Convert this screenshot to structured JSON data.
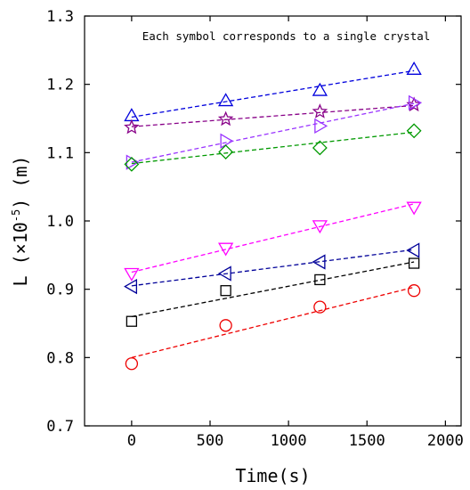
{
  "chart_data": {
    "type": "scatter",
    "annotation": "Each symbol corresponds to a single crystal",
    "xlabel": "Time(s)",
    "ylabel": "L (×10",
    "ylabel_exponent": "-5",
    "ylabel_unit": ") (m)",
    "xlim": [
      -300,
      2100
    ],
    "ylim": [
      0.7,
      1.3
    ],
    "xticks": [
      0,
      500,
      1000,
      1500,
      2000
    ],
    "xtick_labels": [
      "0",
      "500",
      "1000",
      "1500",
      "2000"
    ],
    "yticks": [
      0.7,
      0.8,
      0.9,
      1.0,
      1.1,
      1.2,
      1.3
    ],
    "ytick_labels": [
      "0.7",
      "0.8",
      "0.9",
      "1.0",
      "1.1",
      "1.2",
      "1.3"
    ],
    "grid": false,
    "legend": "none",
    "x": [
      0,
      600,
      1200,
      1800
    ],
    "series": [
      {
        "marker": "triangle-up",
        "color": "#0000dd",
        "values": [
          1.154,
          1.176,
          1.191,
          1.222
        ],
        "fit": [
          1.152,
          1.22
        ]
      },
      {
        "marker": "star",
        "color": "#880088",
        "values": [
          1.137,
          1.149,
          1.16,
          1.17
        ],
        "fit": [
          1.138,
          1.169
        ]
      },
      {
        "marker": "triangle-right",
        "color": "#9933ff",
        "values": [
          1.086,
          1.117,
          1.139,
          1.173
        ],
        "fit": [
          1.086,
          1.172
        ]
      },
      {
        "marker": "diamond",
        "color": "#009900",
        "values": [
          1.083,
          1.101,
          1.107,
          1.132
        ],
        "fit": [
          1.084,
          1.13
        ]
      },
      {
        "marker": "triangle-down",
        "color": "#ff00ff",
        "values": [
          0.923,
          0.96,
          0.993,
          1.02
        ],
        "fit": [
          0.925,
          1.025
        ]
      },
      {
        "marker": "triangle-left",
        "color": "#000099",
        "values": [
          0.904,
          0.923,
          0.94,
          0.957
        ],
        "fit": [
          0.905,
          0.958
        ]
      },
      {
        "marker": "square",
        "color": "#000000",
        "values": [
          0.853,
          0.898,
          0.914,
          0.938
        ],
        "fit": [
          0.86,
          0.94
        ]
      },
      {
        "marker": "circle",
        "color": "#ee0000",
        "values": [
          0.791,
          0.847,
          0.874,
          0.898
        ],
        "fit": [
          0.8,
          0.903
        ]
      }
    ]
  }
}
